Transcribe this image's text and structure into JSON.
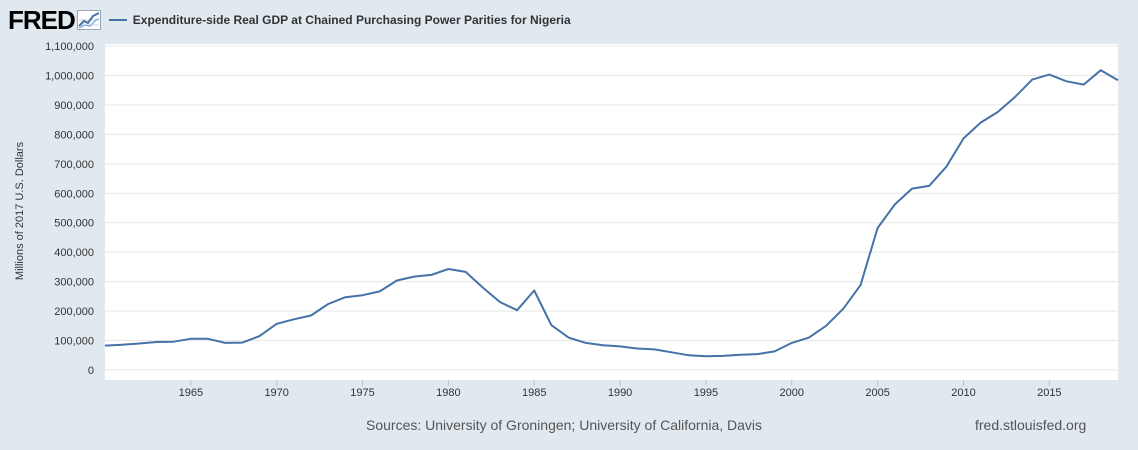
{
  "header": {
    "logo_text": "FRED",
    "logo_icon": "line-chart-icon"
  },
  "colors": {
    "background": "#e1e9f0",
    "plot_background": "#ffffff",
    "series": "#4572a7",
    "grid": "#e6e6e6"
  },
  "chart_data": {
    "type": "line",
    "title": "",
    "xlabel": "",
    "ylabel": "Millions of 2017 U.S. Dollars",
    "xlim": [
      1960,
      2019
    ],
    "ylim": [
      0,
      1100000
    ],
    "grid": true,
    "legend_position": "top-left",
    "x_tick_labels": [
      "1965",
      "1970",
      "1975",
      "1980",
      "1985",
      "1990",
      "1995",
      "2000",
      "2005",
      "2010",
      "2015"
    ],
    "x_ticks": [
      1965,
      1970,
      1975,
      1980,
      1985,
      1990,
      1995,
      2000,
      2005,
      2010,
      2015
    ],
    "y_tick_labels": [
      "0",
      "100,000",
      "200,000",
      "300,000",
      "400,000",
      "500,000",
      "600,000",
      "700,000",
      "800,000",
      "900,000",
      "1,000,000",
      "1,100,000"
    ],
    "y_ticks": [
      0,
      100000,
      200000,
      300000,
      400000,
      500000,
      600000,
      700000,
      800000,
      900000,
      1000000,
      1100000
    ],
    "series": [
      {
        "name": "Expenditure-side Real GDP at Chained Purchasing Power Parities for Nigeria",
        "x": [
          1960,
          1961,
          1962,
          1963,
          1964,
          1965,
          1966,
          1967,
          1968,
          1969,
          1970,
          1971,
          1972,
          1973,
          1974,
          1975,
          1976,
          1977,
          1978,
          1979,
          1980,
          1981,
          1982,
          1983,
          1984,
          1985,
          1986,
          1987,
          1988,
          1989,
          1990,
          1991,
          1992,
          1993,
          1994,
          1995,
          1996,
          1997,
          1998,
          1999,
          2000,
          2001,
          2002,
          2003,
          2004,
          2005,
          2006,
          2007,
          2008,
          2009,
          2010,
          2011,
          2012,
          2013,
          2014,
          2015,
          2016,
          2017,
          2018,
          2019
        ],
        "values": [
          83000,
          86000,
          90000,
          95000,
          96000,
          106000,
          106000,
          92000,
          93000,
          115000,
          157000,
          172000,
          185000,
          224000,
          247000,
          254000,
          267000,
          304000,
          317000,
          323000,
          343000,
          333000,
          280000,
          231000,
          203000,
          270000,
          152000,
          110000,
          92000,
          84000,
          80000,
          73000,
          70000,
          60000,
          50000,
          47000,
          48000,
          52000,
          54000,
          63000,
          92000,
          110000,
          150000,
          208000,
          288000,
          482000,
          562000,
          616000,
          625000,
          690000,
          786000,
          840000,
          876000,
          927000,
          986000,
          1003000,
          980000,
          969000,
          1018000,
          984000
        ]
      }
    ]
  },
  "footer": {
    "sources": "Sources: University of Groningen; University of California, Davis",
    "site": "fred.stlouisfed.org"
  }
}
